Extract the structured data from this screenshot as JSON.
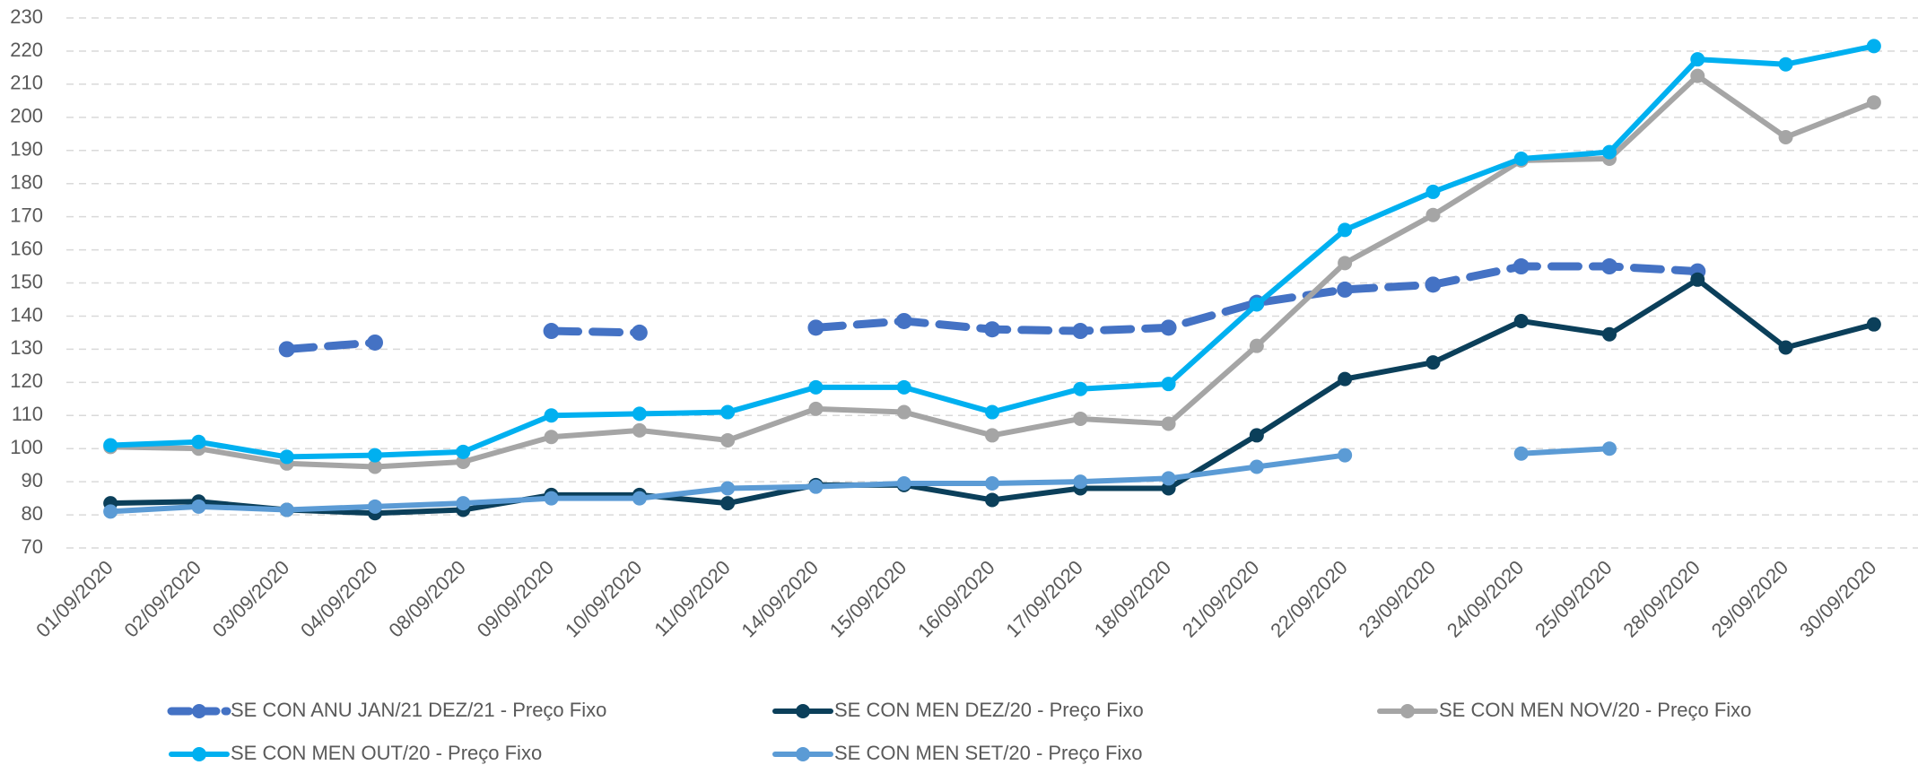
{
  "chart_data": {
    "type": "line",
    "categories": [
      "01/09/2020",
      "02/09/2020",
      "03/09/2020",
      "04/09/2020",
      "08/09/2020",
      "09/09/2020",
      "10/09/2020",
      "11/09/2020",
      "14/09/2020",
      "15/09/2020",
      "16/09/2020",
      "17/09/2020",
      "18/09/2020",
      "21/09/2020",
      "22/09/2020",
      "23/09/2020",
      "24/09/2020",
      "25/09/2020",
      "28/09/2020",
      "29/09/2020",
      "30/09/2020"
    ],
    "series": [
      {
        "name": "SE CON ANU JAN/21 DEZ/21 - Preço Fixo",
        "color": "#4472c4",
        "dashed": true,
        "values": [
          null,
          null,
          130,
          132,
          null,
          135.5,
          135,
          null,
          136.5,
          138.5,
          136,
          135.5,
          136.5,
          144,
          148,
          149.5,
          155,
          155,
          153.5,
          null,
          null
        ]
      },
      {
        "name": "SE CON MEN DEZ/20 - Preço Fixo",
        "color": "#0b3f5a",
        "values": [
          83.5,
          84,
          81.5,
          80.5,
          81.5,
          86,
          86,
          83.5,
          89,
          89,
          84.5,
          88,
          88,
          104,
          121,
          126,
          138.5,
          134.5,
          151,
          130.5,
          137.5
        ]
      },
      {
        "name": "SE CON MEN NOV/20 - Preço Fixo",
        "color": "#a5a5a5",
        "values": [
          100.5,
          100,
          95.5,
          94.5,
          96,
          103.5,
          105.5,
          102.5,
          112,
          111,
          104,
          109,
          107.5,
          131,
          156,
          170.5,
          187,
          187.5,
          212.5,
          194,
          204.5
        ]
      },
      {
        "name": "SE CON MEN OUT/20 - Preço Fixo",
        "color": "#00b0f0",
        "values": [
          101,
          102,
          97.5,
          98,
          99,
          110,
          110.5,
          111,
          118.5,
          118.5,
          111,
          118,
          119.5,
          143.5,
          166,
          177.5,
          187.5,
          189.5,
          217.5,
          216,
          221.5
        ]
      },
      {
        "name": "SE CON MEN SET/20 - Preço Fixo",
        "color": "#5b9bd5",
        "values": [
          81,
          82.5,
          81.5,
          82.5,
          83.5,
          85,
          85,
          88,
          88.5,
          89.5,
          89.5,
          90,
          91,
          94.5,
          98,
          null,
          98.5,
          100,
          null,
          null,
          null
        ]
      }
    ],
    "ylim": [
      70,
      230
    ],
    "yticks": [
      70,
      80,
      90,
      100,
      110,
      120,
      130,
      140,
      150,
      160,
      170,
      180,
      190,
      200,
      210,
      220,
      230
    ],
    "grid": true,
    "legend": "bottom"
  }
}
